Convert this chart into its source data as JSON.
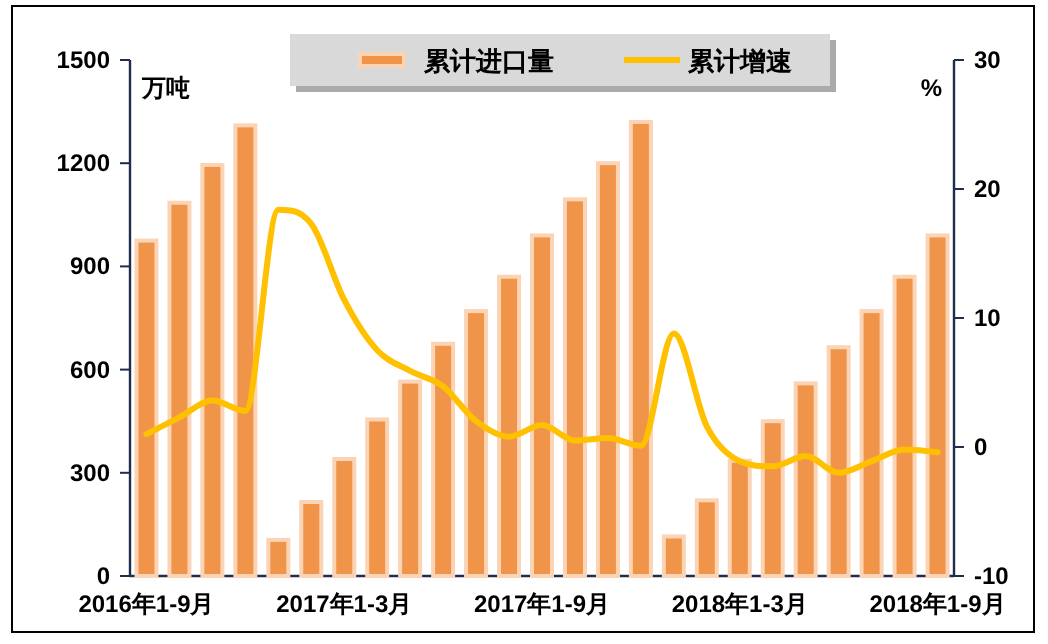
{
  "chart_data": {
    "type": "bar",
    "categories": [
      "2016年1-9月",
      null,
      null,
      null,
      null,
      null,
      "2017年1-3月",
      null,
      null,
      null,
      null,
      null,
      "2017年1-9月",
      null,
      null,
      null,
      null,
      null,
      "2018年1-3月",
      null,
      null,
      null,
      null,
      null,
      "2018年1-9月"
    ],
    "series": [
      {
        "name": "累计进口量",
        "color": "#f0944a",
        "values": [
          975,
          1085,
          1195,
          1310,
          105,
          215,
          340,
          455,
          565,
          675,
          770,
          870,
          990,
          1095,
          1200,
          1320,
          115,
          220,
          335,
          450,
          560,
          665,
          770,
          870,
          990
        ]
      },
      {
        "name": "累计增速",
        "type": "line",
        "axis": "y2",
        "color": "#ffc000",
        "values": [
          1.0,
          2.3,
          3.6,
          2.8,
          18.4,
          17.3,
          11.4,
          7.5,
          5.9,
          4.7,
          2.0,
          0.8,
          1.7,
          0.5,
          0.7,
          0.1,
          8.8,
          1.6,
          -1.1,
          -1.5,
          -0.7,
          -2.0,
          -1.1,
          -0.2,
          -0.4
        ]
      }
    ],
    "ylim": [
      0,
      1500
    ],
    "yticks": [
      0,
      300,
      600,
      900,
      1200,
      1500
    ],
    "y2lim": [
      -10,
      30
    ],
    "y2ticks": [
      -10,
      0,
      10,
      20,
      30
    ],
    "ylabel": "万吨",
    "y2label": "%",
    "legend": "top",
    "grid": false
  }
}
